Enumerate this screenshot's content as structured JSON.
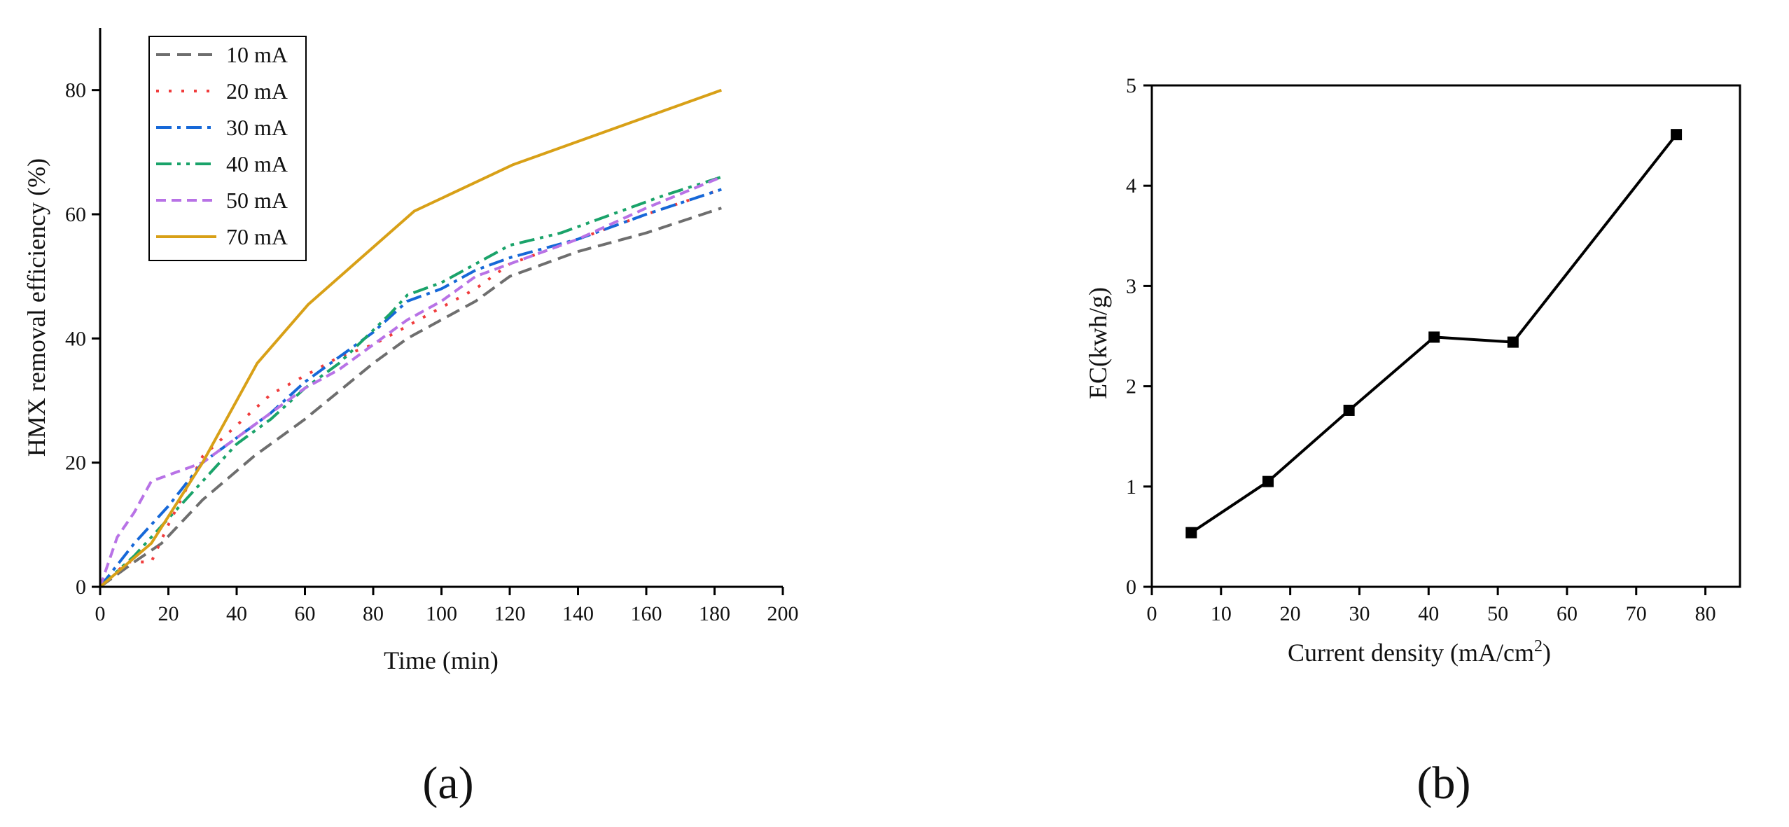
{
  "chart_data": [
    {
      "type": "line",
      "panel_label": "(a)",
      "xlabel": "Time (min)",
      "ylabel": "HMX removal efficiency (%)",
      "xlim": [
        0,
        200
      ],
      "ylim": [
        0,
        90
      ],
      "xticks": [
        0,
        20,
        40,
        60,
        80,
        100,
        120,
        140,
        160,
        180,
        200
      ],
      "yticks": [
        0,
        20,
        40,
        60,
        80
      ],
      "legend_position": "top-left",
      "series": [
        {
          "name": "10 mA",
          "color": "#6e6e6e",
          "dash": "dash",
          "x": [
            0,
            10,
            18,
            30,
            45,
            60,
            80,
            90,
            100,
            110,
            120,
            140,
            160,
            182
          ],
          "y": [
            0,
            4,
            7,
            14,
            21,
            27,
            36,
            40,
            43,
            46,
            50,
            54,
            57,
            61
          ]
        },
        {
          "name": "20 mA",
          "color": "#f03c3c",
          "dash": "dot",
          "x": [
            0,
            8,
            15,
            20,
            30,
            40,
            50,
            60,
            70,
            80,
            90,
            100,
            110,
            120,
            140,
            160,
            182
          ],
          "y": [
            0,
            4,
            4,
            10,
            21,
            26,
            31,
            34,
            37,
            39,
            42,
            45,
            48,
            52,
            56,
            60,
            64
          ]
        },
        {
          "name": "30 mA",
          "color": "#1668d8",
          "dash": "dashdot",
          "x": [
            0,
            10,
            20,
            30,
            40,
            50,
            60,
            70,
            80,
            90,
            100,
            110,
            120,
            140,
            160,
            182
          ],
          "y": [
            0,
            7,
            13,
            20,
            24,
            28,
            33,
            37,
            41,
            46,
            48,
            51,
            53,
            56,
            60,
            64
          ]
        },
        {
          "name": "40 mA",
          "color": "#1aa36a",
          "dash": "dashdotdot",
          "x": [
            0,
            10,
            20,
            30,
            40,
            50,
            60,
            70,
            85,
            90,
            100,
            110,
            120,
            135,
            150,
            165,
            182
          ],
          "y": [
            0,
            5,
            11,
            17,
            23,
            27,
            32,
            36,
            44,
            47,
            49,
            52,
            55,
            57,
            60,
            63,
            66
          ]
        },
        {
          "name": "50 mA",
          "color": "#b872e6",
          "dash": "shortdash",
          "x": [
            0,
            5,
            10,
            15,
            20,
            30,
            40,
            50,
            60,
            70,
            80,
            90,
            100,
            110,
            120,
            140,
            160,
            182
          ],
          "y": [
            0,
            8,
            12,
            17,
            18,
            20,
            24,
            28,
            32,
            35,
            39,
            43,
            46,
            50,
            52,
            56,
            61,
            66
          ]
        },
        {
          "name": "70 mA",
          "color": "#d8a017",
          "dash": "solid",
          "x": [
            0,
            15,
            30,
            46,
            61,
            92,
            121,
            182
          ],
          "y": [
            0,
            7,
            20,
            36,
            45.5,
            60.5,
            68,
            80
          ]
        }
      ]
    },
    {
      "type": "line",
      "panel_label": "(b)",
      "xlabel_main": "Current density (mA/cm",
      "xlabel_sup": "2",
      "xlabel_end": ")",
      "ylabel": "EC(kwh/g)",
      "xlim": [
        0,
        85
      ],
      "ylim": [
        0,
        5
      ],
      "xticks": [
        0,
        10,
        20,
        30,
        40,
        50,
        60,
        70,
        80
      ],
      "yticks": [
        0,
        1,
        2,
        3,
        4,
        5
      ],
      "series": [
        {
          "name": "EC",
          "color": "#000000",
          "marker": "square",
          "x": [
            5.7,
            16.8,
            28.5,
            40.8,
            52.2,
            75.8
          ],
          "y": [
            0.54,
            1.05,
            1.76,
            2.49,
            2.44,
            4.51
          ]
        }
      ]
    }
  ]
}
